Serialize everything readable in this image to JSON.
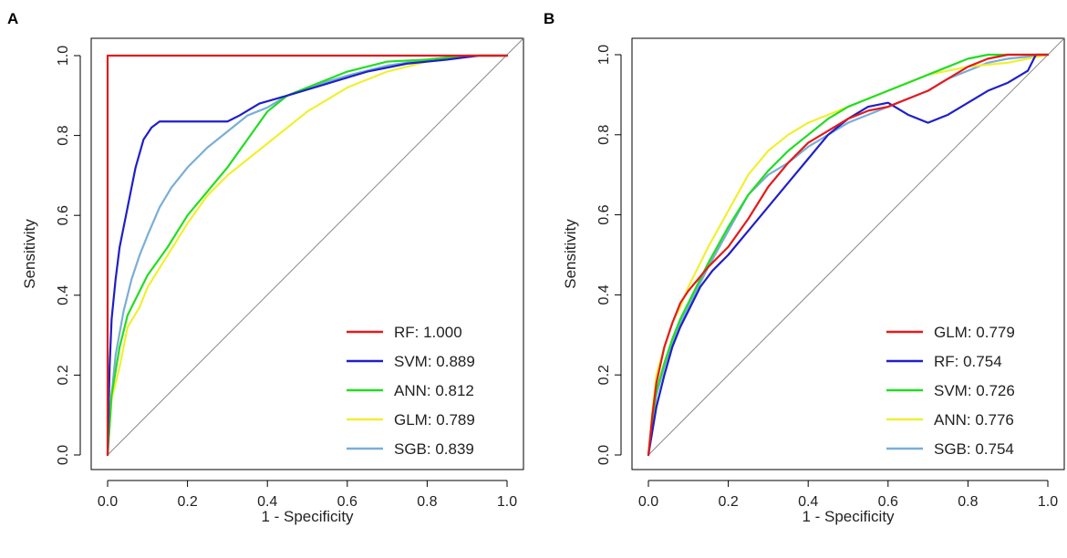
{
  "chart_data": [
    {
      "type": "line",
      "panel_label": "A",
      "xlabel": "1 - Specificity",
      "ylabel": "Sensitivity",
      "xlim": [
        0,
        1
      ],
      "ylim": [
        0,
        1
      ],
      "xticks": [
        "0.0",
        "0.2",
        "0.4",
        "0.6",
        "0.8",
        "1.0"
      ],
      "yticks": [
        "0.0",
        "0.2",
        "0.4",
        "0.6",
        "0.8",
        "1.0"
      ],
      "reference_line": "diagonal",
      "legend_position": "bottom-right",
      "series": [
        {
          "name": "RF",
          "label": "RF: 1.000",
          "auc": 1.0,
          "color": "#e41a1c",
          "points": [
            [
              0,
              0
            ],
            [
              0,
              1
            ],
            [
              1,
              1
            ]
          ]
        },
        {
          "name": "SVM",
          "label": "SVM: 0.889",
          "auc": 0.889,
          "color": "#1f1fc9",
          "points": [
            [
              0,
              0
            ],
            [
              0.005,
              0.22
            ],
            [
              0.01,
              0.34
            ],
            [
              0.02,
              0.44
            ],
            [
              0.03,
              0.52
            ],
            [
              0.05,
              0.62
            ],
            [
              0.07,
              0.72
            ],
            [
              0.09,
              0.79
            ],
            [
              0.11,
              0.82
            ],
            [
              0.13,
              0.835
            ],
            [
              0.3,
              0.835
            ],
            [
              0.33,
              0.85
            ],
            [
              0.38,
              0.88
            ],
            [
              0.45,
              0.9
            ],
            [
              0.55,
              0.93
            ],
            [
              0.65,
              0.96
            ],
            [
              0.75,
              0.98
            ],
            [
              0.85,
              0.99
            ],
            [
              0.93,
              1.0
            ],
            [
              1,
              1
            ]
          ]
        },
        {
          "name": "ANN",
          "label": "ANN: 0.812",
          "auc": 0.812,
          "color": "#22dd22",
          "points": [
            [
              0,
              0
            ],
            [
              0.01,
              0.15
            ],
            [
              0.03,
              0.27
            ],
            [
              0.05,
              0.35
            ],
            [
              0.08,
              0.41
            ],
            [
              0.1,
              0.45
            ],
            [
              0.15,
              0.52
            ],
            [
              0.2,
              0.6
            ],
            [
              0.25,
              0.66
            ],
            [
              0.3,
              0.72
            ],
            [
              0.35,
              0.79
            ],
            [
              0.4,
              0.86
            ],
            [
              0.45,
              0.9
            ],
            [
              0.5,
              0.92
            ],
            [
              0.55,
              0.94
            ],
            [
              0.6,
              0.96
            ],
            [
              0.7,
              0.985
            ],
            [
              0.8,
              0.99
            ],
            [
              0.9,
              1.0
            ],
            [
              1,
              1
            ]
          ]
        },
        {
          "name": "GLM",
          "label": "GLM: 0.789",
          "auc": 0.789,
          "color": "#f0f030",
          "points": [
            [
              0,
              0
            ],
            [
              0.01,
              0.14
            ],
            [
              0.03,
              0.22
            ],
            [
              0.05,
              0.32
            ],
            [
              0.08,
              0.37
            ],
            [
              0.1,
              0.42
            ],
            [
              0.15,
              0.5
            ],
            [
              0.2,
              0.58
            ],
            [
              0.25,
              0.65
            ],
            [
              0.3,
              0.7
            ],
            [
              0.35,
              0.74
            ],
            [
              0.4,
              0.78
            ],
            [
              0.45,
              0.82
            ],
            [
              0.5,
              0.86
            ],
            [
              0.55,
              0.89
            ],
            [
              0.6,
              0.92
            ],
            [
              0.7,
              0.96
            ],
            [
              0.8,
              0.985
            ],
            [
              0.9,
              1.0
            ],
            [
              1,
              1
            ]
          ]
        },
        {
          "name": "SGB",
          "label": "SGB: 0.839",
          "auc": 0.839,
          "color": "#7aaed6",
          "points": [
            [
              0,
              0
            ],
            [
              0.01,
              0.15
            ],
            [
              0.02,
              0.25
            ],
            [
              0.04,
              0.36
            ],
            [
              0.06,
              0.44
            ],
            [
              0.08,
              0.5
            ],
            [
              0.1,
              0.55
            ],
            [
              0.13,
              0.62
            ],
            [
              0.16,
              0.67
            ],
            [
              0.2,
              0.72
            ],
            [
              0.25,
              0.77
            ],
            [
              0.3,
              0.81
            ],
            [
              0.35,
              0.85
            ],
            [
              0.4,
              0.87
            ],
            [
              0.45,
              0.9
            ],
            [
              0.5,
              0.92
            ],
            [
              0.6,
              0.95
            ],
            [
              0.7,
              0.975
            ],
            [
              0.8,
              0.99
            ],
            [
              0.9,
              1.0
            ],
            [
              1,
              1
            ]
          ]
        }
      ]
    },
    {
      "type": "line",
      "panel_label": "B",
      "xlabel": "1 - Specificity",
      "ylabel": "Sensitivity",
      "xlim": [
        0,
        1
      ],
      "ylim": [
        0,
        1
      ],
      "xticks": [
        "0.0",
        "0.2",
        "0.4",
        "0.6",
        "0.8",
        "1.0"
      ],
      "yticks": [
        "0.0",
        "0.2",
        "0.4",
        "0.6",
        "0.8",
        "1.0"
      ],
      "reference_line": "diagonal",
      "legend_position": "bottom-right",
      "series": [
        {
          "name": "GLM",
          "label": "GLM: 0.779",
          "auc": 0.779,
          "color": "#e41a1c",
          "points": [
            [
              0,
              0
            ],
            [
              0.01,
              0.1
            ],
            [
              0.02,
              0.18
            ],
            [
              0.04,
              0.27
            ],
            [
              0.06,
              0.33
            ],
            [
              0.08,
              0.38
            ],
            [
              0.1,
              0.41
            ],
            [
              0.15,
              0.47
            ],
            [
              0.2,
              0.52
            ],
            [
              0.25,
              0.59
            ],
            [
              0.3,
              0.67
            ],
            [
              0.35,
              0.73
            ],
            [
              0.4,
              0.78
            ],
            [
              0.45,
              0.81
            ],
            [
              0.5,
              0.84
            ],
            [
              0.55,
              0.86
            ],
            [
              0.6,
              0.87
            ],
            [
              0.65,
              0.89
            ],
            [
              0.7,
              0.91
            ],
            [
              0.75,
              0.94
            ],
            [
              0.8,
              0.97
            ],
            [
              0.85,
              0.99
            ],
            [
              0.9,
              1.0
            ],
            [
              1,
              1
            ]
          ]
        },
        {
          "name": "RF",
          "label": "RF: 0.754",
          "auc": 0.754,
          "color": "#1f1fc9",
          "points": [
            [
              0,
              0
            ],
            [
              0.01,
              0.06
            ],
            [
              0.02,
              0.12
            ],
            [
              0.04,
              0.2
            ],
            [
              0.06,
              0.27
            ],
            [
              0.08,
              0.32
            ],
            [
              0.1,
              0.36
            ],
            [
              0.13,
              0.42
            ],
            [
              0.16,
              0.46
            ],
            [
              0.2,
              0.5
            ],
            [
              0.25,
              0.56
            ],
            [
              0.3,
              0.62
            ],
            [
              0.35,
              0.68
            ],
            [
              0.4,
              0.74
            ],
            [
              0.45,
              0.8
            ],
            [
              0.5,
              0.84
            ],
            [
              0.55,
              0.87
            ],
            [
              0.6,
              0.88
            ],
            [
              0.65,
              0.85
            ],
            [
              0.7,
              0.83
            ],
            [
              0.75,
              0.85
            ],
            [
              0.8,
              0.88
            ],
            [
              0.85,
              0.91
            ],
            [
              0.9,
              0.93
            ],
            [
              0.95,
              0.96
            ],
            [
              0.97,
              1.0
            ],
            [
              1,
              1
            ]
          ]
        },
        {
          "name": "SVM",
          "label": "SVM: 0.726",
          "auc": 0.726,
          "color": "#22dd22",
          "points": [
            [
              0,
              0
            ],
            [
              0.01,
              0.09
            ],
            [
              0.02,
              0.16
            ],
            [
              0.04,
              0.23
            ],
            [
              0.06,
              0.29
            ],
            [
              0.08,
              0.34
            ],
            [
              0.1,
              0.38
            ],
            [
              0.15,
              0.48
            ],
            [
              0.2,
              0.57
            ],
            [
              0.25,
              0.65
            ],
            [
              0.3,
              0.71
            ],
            [
              0.35,
              0.76
            ],
            [
              0.4,
              0.8
            ],
            [
              0.45,
              0.84
            ],
            [
              0.5,
              0.87
            ],
            [
              0.55,
              0.89
            ],
            [
              0.6,
              0.91
            ],
            [
              0.65,
              0.93
            ],
            [
              0.7,
              0.95
            ],
            [
              0.75,
              0.97
            ],
            [
              0.8,
              0.99
            ],
            [
              0.85,
              1.0
            ],
            [
              1,
              1
            ]
          ]
        },
        {
          "name": "ANN",
          "label": "ANN: 0.776",
          "auc": 0.776,
          "color": "#f0f030",
          "points": [
            [
              0,
              0
            ],
            [
              0.01,
              0.11
            ],
            [
              0.02,
              0.2
            ],
            [
              0.04,
              0.27
            ],
            [
              0.06,
              0.33
            ],
            [
              0.08,
              0.37
            ],
            [
              0.1,
              0.42
            ],
            [
              0.15,
              0.52
            ],
            [
              0.2,
              0.61
            ],
            [
              0.25,
              0.7
            ],
            [
              0.3,
              0.76
            ],
            [
              0.35,
              0.8
            ],
            [
              0.4,
              0.83
            ],
            [
              0.45,
              0.85
            ],
            [
              0.5,
              0.87
            ],
            [
              0.55,
              0.89
            ],
            [
              0.6,
              0.91
            ],
            [
              0.65,
              0.93
            ],
            [
              0.7,
              0.95
            ],
            [
              0.75,
              0.96
            ],
            [
              0.8,
              0.97
            ],
            [
              0.9,
              0.98
            ],
            [
              0.95,
              0.99
            ],
            [
              1,
              1
            ]
          ]
        },
        {
          "name": "SGB",
          "label": "SGB: 0.754",
          "auc": 0.754,
          "color": "#7aaed6",
          "points": [
            [
              0,
              0
            ],
            [
              0.01,
              0.08
            ],
            [
              0.02,
              0.15
            ],
            [
              0.04,
              0.22
            ],
            [
              0.06,
              0.28
            ],
            [
              0.08,
              0.33
            ],
            [
              0.1,
              0.37
            ],
            [
              0.15,
              0.47
            ],
            [
              0.2,
              0.56
            ],
            [
              0.25,
              0.65
            ],
            [
              0.3,
              0.7
            ],
            [
              0.35,
              0.73
            ],
            [
              0.4,
              0.77
            ],
            [
              0.45,
              0.8
            ],
            [
              0.5,
              0.83
            ],
            [
              0.55,
              0.85
            ],
            [
              0.6,
              0.87
            ],
            [
              0.65,
              0.89
            ],
            [
              0.7,
              0.91
            ],
            [
              0.75,
              0.94
            ],
            [
              0.8,
              0.96
            ],
            [
              0.85,
              0.98
            ],
            [
              0.9,
              0.99
            ],
            [
              1,
              1
            ]
          ]
        }
      ]
    }
  ]
}
